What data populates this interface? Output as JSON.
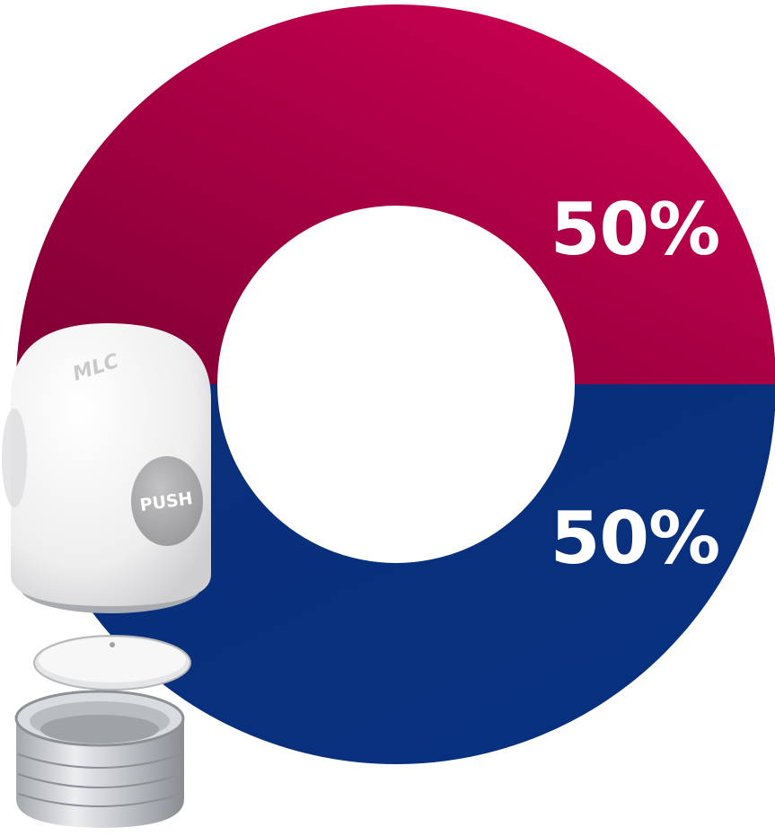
{
  "chart_data": {
    "type": "pie",
    "title": "",
    "series": [
      {
        "label": "50%",
        "value": 50,
        "color": "#c8004f"
      },
      {
        "label": "50%",
        "value": 50,
        "color": "#003580"
      }
    ],
    "legend": "none"
  },
  "product": {
    "push_label": "PUSH",
    "logo_text": "MLC"
  }
}
